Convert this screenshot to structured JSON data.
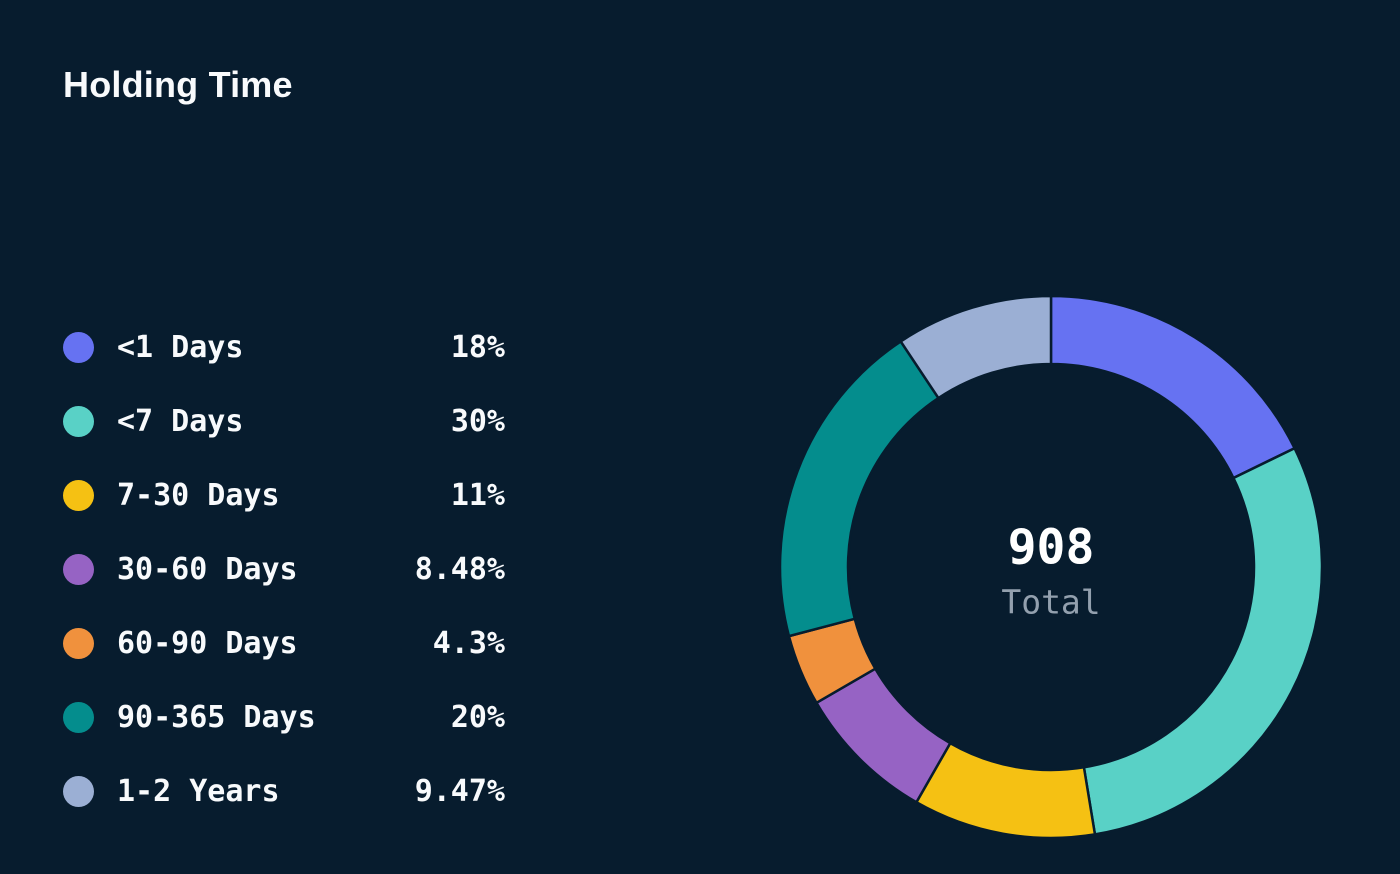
{
  "chart_data": {
    "type": "pie",
    "variant": "donut",
    "title": "Holding Time",
    "categories": [
      "<1 Days",
      "<7 Days",
      "7-30 Days",
      "30-60 Days",
      "60-90 Days",
      "90-365 Days",
      "1-2 Years"
    ],
    "values": [
      18,
      30,
      11,
      8.48,
      4.3,
      20,
      9.47
    ],
    "value_labels": [
      "18%",
      "30%",
      "11%",
      "8.48%",
      "4.3%",
      "20%",
      "9.47%"
    ],
    "colors": [
      "#6672f2",
      "#59d1c6",
      "#f5c113",
      "#9663c4",
      "#f0913d",
      "#048d8d",
      "#9bafd4"
    ],
    "center": {
      "value": "908",
      "label": "Total"
    },
    "start_angle_deg": 0,
    "direction": "clockwise",
    "legend_position": "left"
  },
  "colors": {
    "background": "#071c2e",
    "title_text": "#f8fafc",
    "legend_text": "#f8fafc",
    "total_value_text": "#ffffff",
    "total_label_text": "#93a0ae",
    "slice_gap": "#071c2e"
  }
}
